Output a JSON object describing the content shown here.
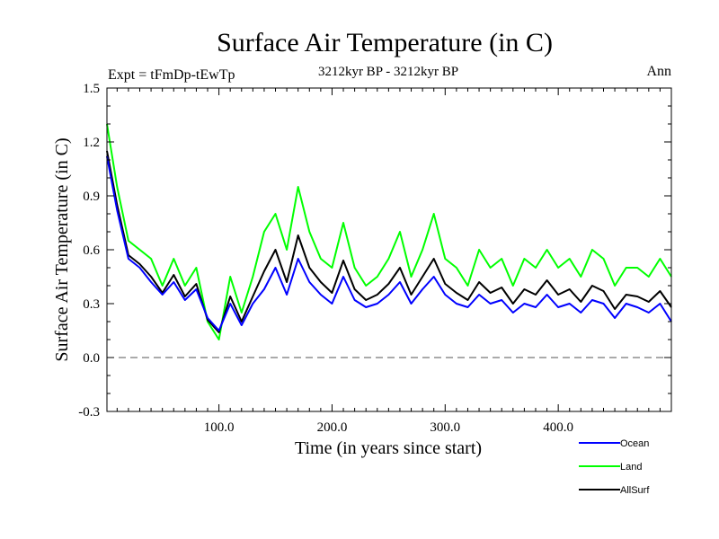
{
  "chart_data": {
    "type": "line",
    "title": "Surface Air Temperature (in C)",
    "subtitle_left": "Expt = tFmDp-tEwTp",
    "subtitle_center": "3212kyr BP - 3212kyr BP",
    "subtitle_right": "Ann",
    "xlabel": "Time (in years since start)",
    "ylabel": "Surface Air Temperature (in C)",
    "xlim": [
      1,
      500
    ],
    "ylim": [
      -0.3,
      1.5
    ],
    "xticks": [
      100,
      200,
      300,
      400
    ],
    "xtick_labels": [
      "100.0",
      "200.0",
      "300.0",
      "400.0"
    ],
    "yticks": [
      -0.3,
      0.0,
      0.3,
      0.6,
      0.9,
      1.2,
      1.5
    ],
    "ytick_labels": [
      "-0.3",
      "0.0",
      "0.3",
      "0.6",
      "0.9",
      "1.2",
      "1.5"
    ],
    "zero_line": 0.0,
    "series": [
      {
        "name": "Ocean",
        "color": "#0000ff",
        "x": [
          1,
          10,
          20,
          30,
          40,
          50,
          60,
          70,
          80,
          90,
          100,
          110,
          120,
          130,
          140,
          150,
          160,
          170,
          180,
          190,
          200,
          210,
          220,
          230,
          240,
          250,
          260,
          270,
          280,
          290,
          300,
          310,
          320,
          330,
          340,
          350,
          360,
          370,
          380,
          390,
          400,
          410,
          420,
          430,
          440,
          450,
          460,
          470,
          480,
          490,
          500
        ],
        "values": [
          1.12,
          0.82,
          0.55,
          0.5,
          0.42,
          0.35,
          0.42,
          0.32,
          0.38,
          0.22,
          0.15,
          0.3,
          0.18,
          0.3,
          0.38,
          0.5,
          0.35,
          0.55,
          0.42,
          0.35,
          0.3,
          0.45,
          0.32,
          0.28,
          0.3,
          0.35,
          0.42,
          0.3,
          0.38,
          0.45,
          0.35,
          0.3,
          0.28,
          0.35,
          0.3,
          0.32,
          0.25,
          0.3,
          0.28,
          0.35,
          0.28,
          0.3,
          0.25,
          0.32,
          0.3,
          0.22,
          0.3,
          0.28,
          0.25,
          0.3,
          0.2
        ]
      },
      {
        "name": "Land",
        "color": "#00ff00",
        "x": [
          1,
          10,
          20,
          30,
          40,
          50,
          60,
          70,
          80,
          90,
          100,
          110,
          120,
          130,
          140,
          150,
          160,
          170,
          180,
          190,
          200,
          210,
          220,
          230,
          240,
          250,
          260,
          270,
          280,
          290,
          300,
          310,
          320,
          330,
          340,
          350,
          360,
          370,
          380,
          390,
          400,
          410,
          420,
          430,
          440,
          450,
          460,
          470,
          480,
          490,
          500
        ],
        "values": [
          1.3,
          0.95,
          0.65,
          0.6,
          0.55,
          0.4,
          0.55,
          0.4,
          0.5,
          0.2,
          0.1,
          0.45,
          0.25,
          0.45,
          0.7,
          0.8,
          0.6,
          0.95,
          0.7,
          0.55,
          0.5,
          0.75,
          0.5,
          0.4,
          0.45,
          0.55,
          0.7,
          0.45,
          0.6,
          0.8,
          0.55,
          0.5,
          0.4,
          0.6,
          0.5,
          0.55,
          0.4,
          0.55,
          0.5,
          0.6,
          0.5,
          0.55,
          0.45,
          0.6,
          0.55,
          0.4,
          0.5,
          0.5,
          0.45,
          0.55,
          0.45
        ]
      },
      {
        "name": "AllSurf",
        "color": "#000000",
        "x": [
          1,
          10,
          20,
          30,
          40,
          50,
          60,
          70,
          80,
          90,
          100,
          110,
          120,
          130,
          140,
          150,
          160,
          170,
          180,
          190,
          200,
          210,
          220,
          230,
          240,
          250,
          260,
          270,
          280,
          290,
          300,
          310,
          320,
          330,
          340,
          350,
          360,
          370,
          380,
          390,
          400,
          410,
          420,
          430,
          440,
          450,
          460,
          470,
          480,
          490,
          500
        ],
        "values": [
          1.15,
          0.85,
          0.57,
          0.52,
          0.45,
          0.36,
          0.46,
          0.34,
          0.41,
          0.21,
          0.14,
          0.34,
          0.2,
          0.34,
          0.48,
          0.6,
          0.42,
          0.68,
          0.5,
          0.42,
          0.36,
          0.54,
          0.38,
          0.32,
          0.35,
          0.41,
          0.5,
          0.35,
          0.45,
          0.55,
          0.41,
          0.36,
          0.32,
          0.42,
          0.36,
          0.39,
          0.3,
          0.38,
          0.35,
          0.43,
          0.35,
          0.38,
          0.31,
          0.4,
          0.37,
          0.27,
          0.35,
          0.34,
          0.31,
          0.37,
          0.28
        ]
      }
    ]
  }
}
